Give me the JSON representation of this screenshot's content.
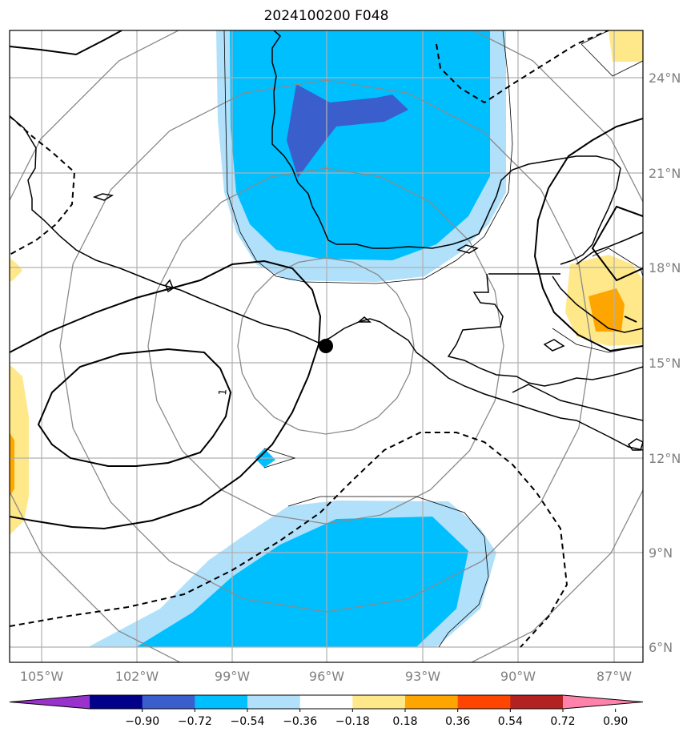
{
  "title": "2024100200 F048",
  "lon_labels": [
    "105°W",
    "102°W",
    "99°W",
    "96°W",
    "93°W",
    "90°W",
    "87°W"
  ],
  "lat_labels": [
    "24°N",
    "21°N",
    "18°N",
    "15°N",
    "12°N",
    "9°N",
    "6°N"
  ],
  "colorbar": {
    "colors": [
      "#9932cc",
      "#00008b",
      "#3a5fcd",
      "#00bfff",
      "#b0e0fa",
      "#ffffff",
      "#ffe88a",
      "#ffa500",
      "#ff4500",
      "#b22222",
      "#ff82ab"
    ],
    "tick_labels": [
      "−0.90",
      "−0.72",
      "−0.54",
      "−0.36",
      "−0.18",
      "0.18",
      "0.36",
      "0.54",
      "0.72",
      "0.90"
    ]
  },
  "contour_labels": [
    "1"
  ],
  "storm_center": {
    "lon": -96.0,
    "lat": 15.5
  }
}
